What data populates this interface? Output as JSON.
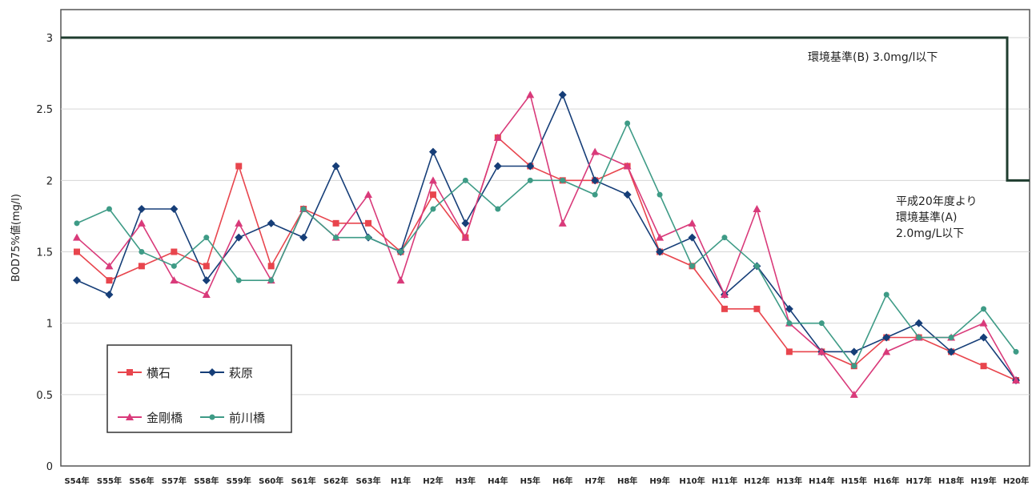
{
  "chart_data": {
    "type": "line",
    "ylabel": "BOD75%値(mg/l)",
    "xlabel": "",
    "ylim": [
      0,
      3
    ],
    "yticks": [
      "0",
      "0.5",
      "1",
      "1.5",
      "2",
      "2.5",
      "3"
    ],
    "grid": true,
    "legend_position": "bottom-left",
    "categories": [
      "S54年",
      "S55年",
      "S56年",
      "S57年",
      "S58年",
      "S59年",
      "S60年",
      "S61年",
      "S62年",
      "S63年",
      "H1年",
      "H2年",
      "H3年",
      "H4年",
      "H5年",
      "H6年",
      "H7年",
      "H8年",
      "H9年",
      "H10年",
      "H11年",
      "H12年",
      "H13年",
      "H14年",
      "H15年",
      "H16年",
      "H17年",
      "H18年",
      "H19年",
      "H20年"
    ],
    "series": [
      {
        "name": "横石",
        "color": "#e8454d",
        "marker": "square",
        "values": [
          1.5,
          1.3,
          1.4,
          1.5,
          1.4,
          2.1,
          1.4,
          1.8,
          1.7,
          1.7,
          1.5,
          1.9,
          1.6,
          2.3,
          2.1,
          2.0,
          2.0,
          2.1,
          1.5,
          1.4,
          1.1,
          1.1,
          0.8,
          0.8,
          0.7,
          0.9,
          0.9,
          0.8,
          0.7,
          0.6
        ]
      },
      {
        "name": "萩原",
        "color": "#163e78",
        "marker": "diamond",
        "values": [
          1.3,
          1.2,
          1.8,
          1.8,
          1.3,
          1.6,
          1.7,
          1.6,
          2.1,
          1.6,
          1.5,
          2.2,
          1.7,
          2.1,
          2.1,
          2.6,
          2.0,
          1.9,
          1.5,
          1.6,
          1.2,
          1.4,
          1.1,
          0.8,
          0.8,
          0.9,
          1.0,
          0.8,
          0.9,
          0.6
        ]
      },
      {
        "name": "金剛橋",
        "color": "#d93a7a",
        "marker": "triangle",
        "values": [
          1.6,
          1.4,
          1.7,
          1.3,
          1.2,
          1.7,
          1.3,
          1.8,
          1.6,
          1.9,
          1.3,
          2.0,
          1.6,
          2.3,
          2.6,
          1.7,
          2.2,
          2.1,
          1.6,
          1.7,
          1.2,
          1.8,
          1.0,
          0.8,
          0.5,
          0.8,
          0.9,
          0.9,
          1.0,
          0.6
        ]
      },
      {
        "name": "前川橋",
        "color": "#3e9b86",
        "marker": "circle",
        "values": [
          1.7,
          1.8,
          1.5,
          1.4,
          1.6,
          1.3,
          1.3,
          1.8,
          1.6,
          1.6,
          1.5,
          1.8,
          2.0,
          1.8,
          2.0,
          2.0,
          1.9,
          2.4,
          1.9,
          1.4,
          1.6,
          1.4,
          1.0,
          1.0,
          0.7,
          1.2,
          0.9,
          0.9,
          1.1,
          0.8
        ]
      }
    ],
    "standard_line": {
      "color": "#1f3d2f",
      "values_before": 3.0,
      "values_after": 2.0
    },
    "annotations": {
      "std_b": "環境基準(B)  3.0mg/l以下",
      "std_a_line1": "平成20年度より",
      "std_a_line2": "環境基準(A)",
      "std_a_line3": "2.0mg/L以下"
    }
  }
}
